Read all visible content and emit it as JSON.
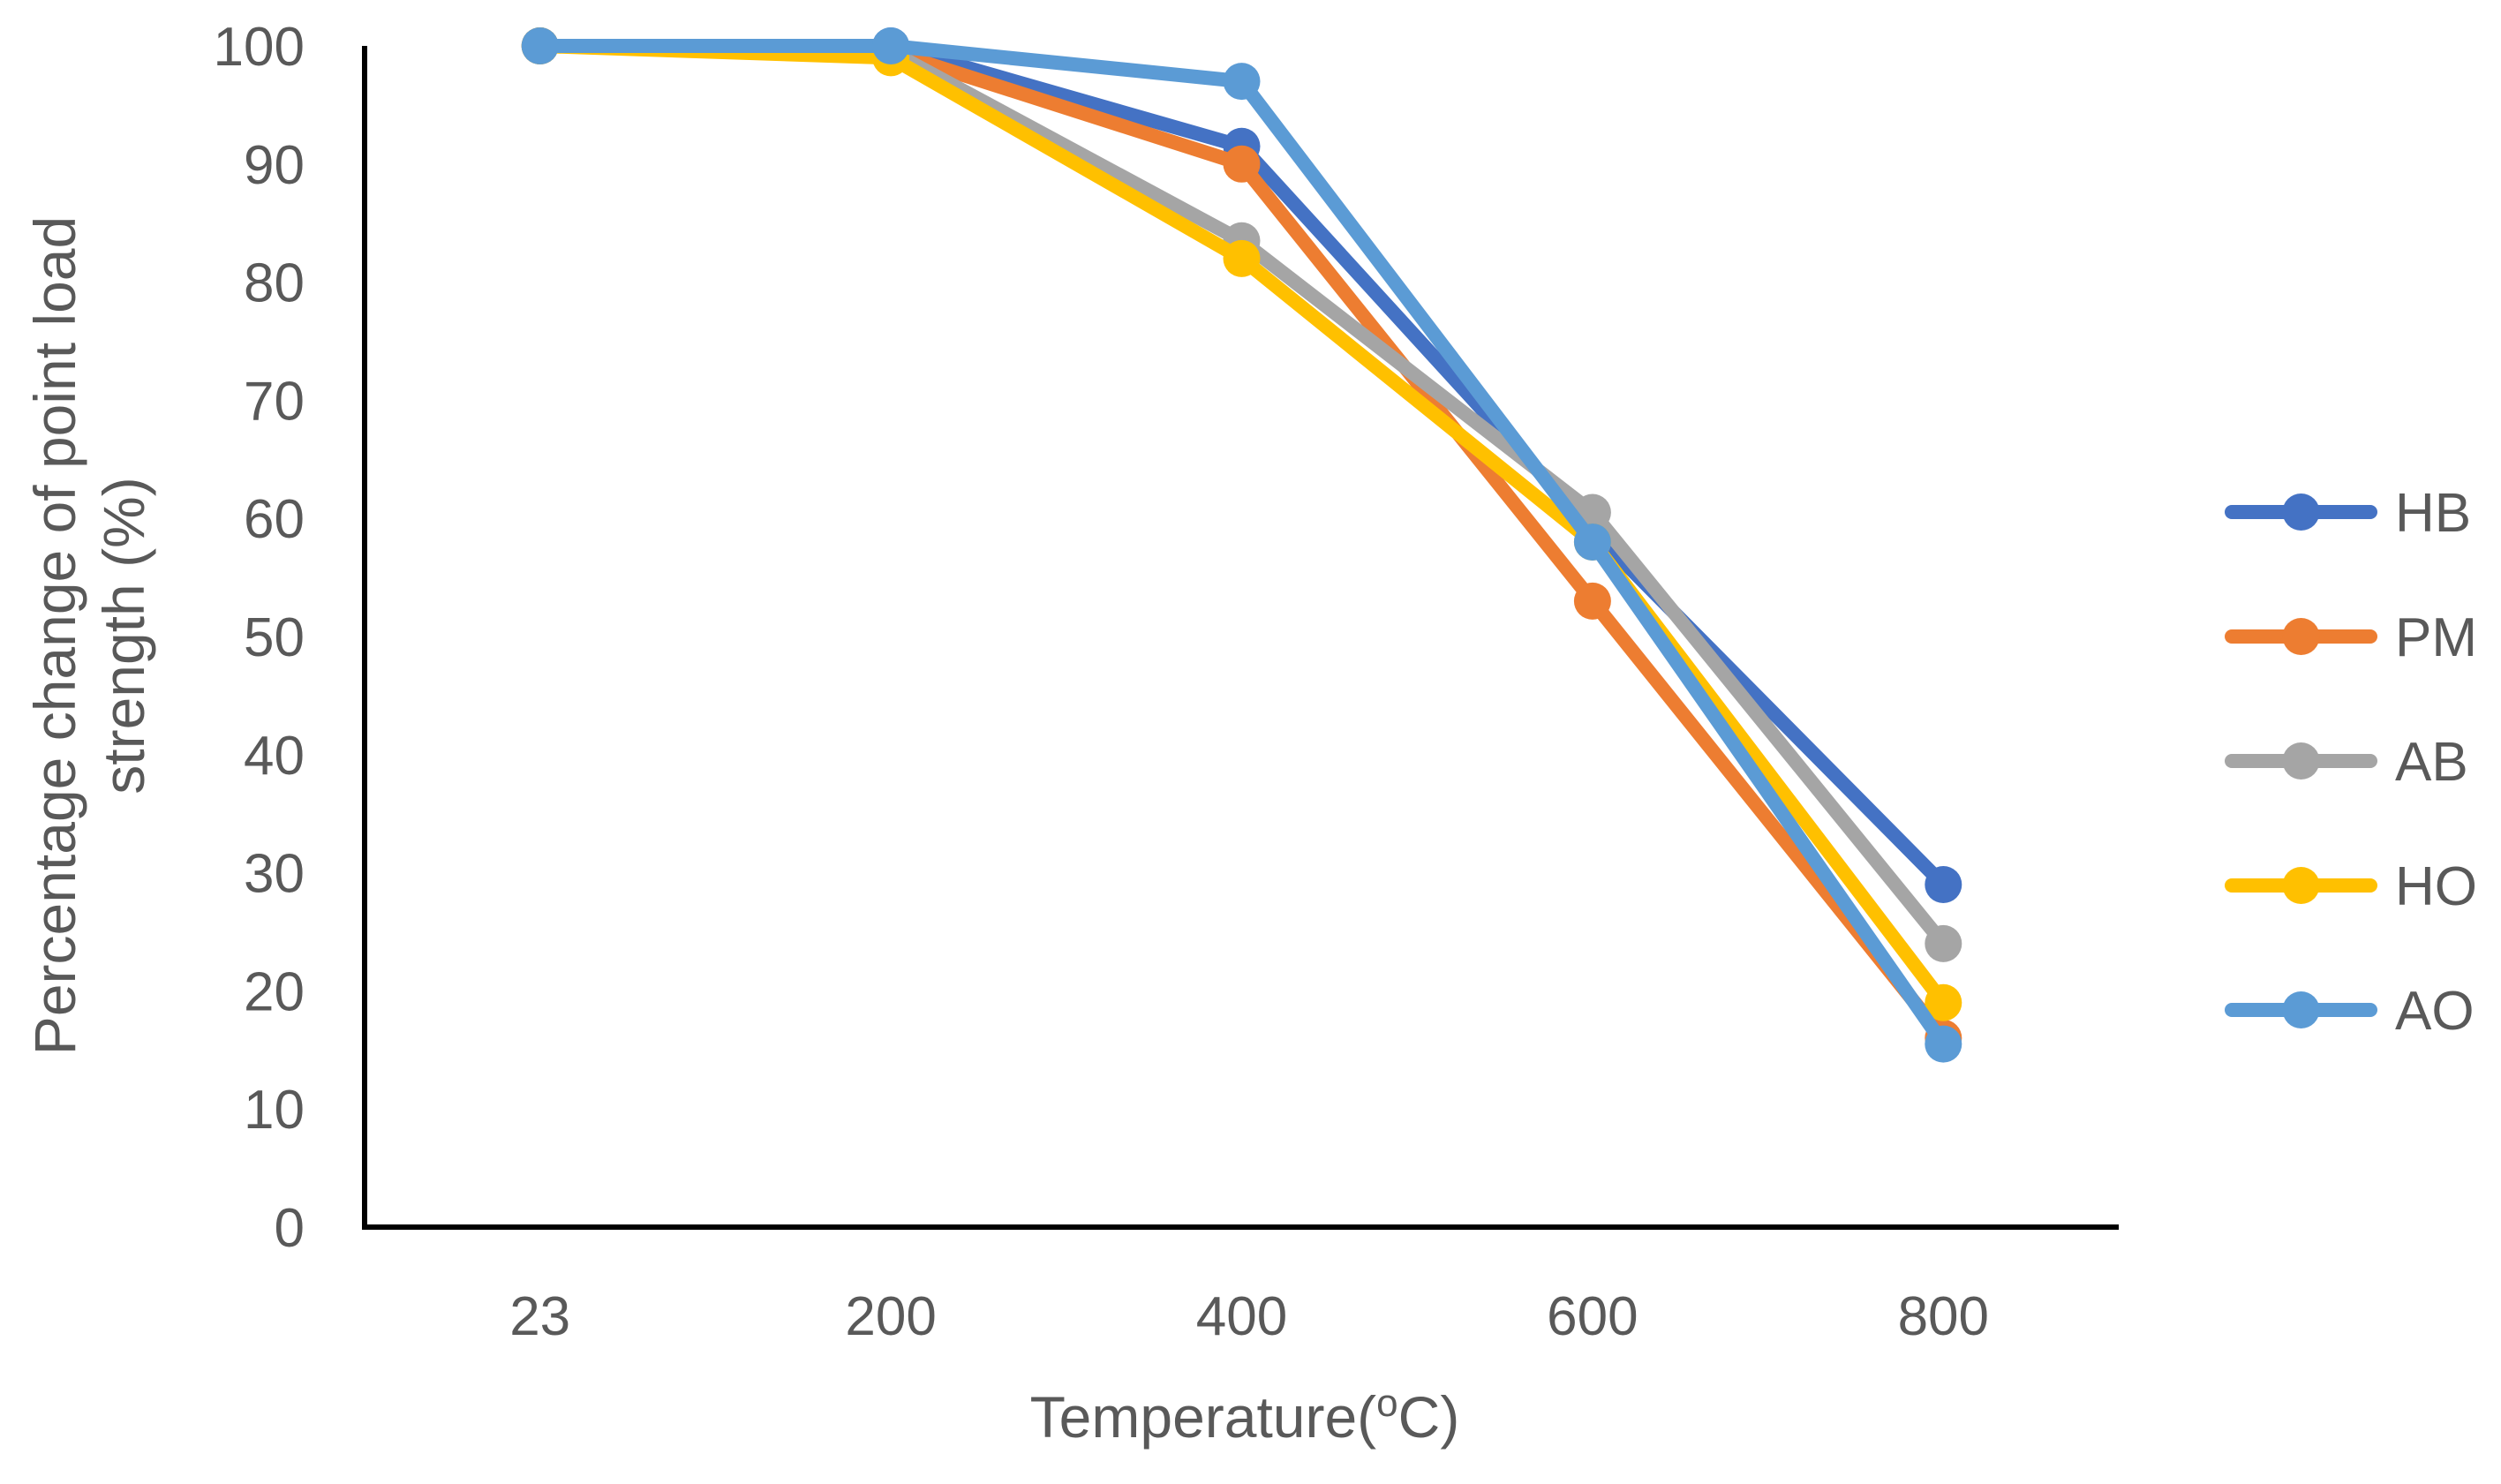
{
  "chart_data": {
    "type": "line",
    "title": "",
    "xlabel": "Temperature(",
    "xlabel_sup": "o",
    "xlabel_unit": "C)",
    "ylabel_lines": [
      "Percentage change of point load",
      "strength (%)"
    ],
    "categories": [
      "23",
      "200",
      "400",
      "600",
      "800"
    ],
    "ylim": [
      0,
      100
    ],
    "yticks": [
      0,
      10,
      20,
      30,
      40,
      50,
      60,
      70,
      80,
      90,
      100
    ],
    "grid": false,
    "legend_position": "right",
    "series": [
      {
        "name": "HB",
        "color": "#4472C4",
        "values": [
          100,
          100,
          91.5,
          59,
          29
        ]
      },
      {
        "name": "PM",
        "color": "#ED7D31",
        "values": [
          100,
          99.5,
          90,
          53,
          16
        ]
      },
      {
        "name": "AB",
        "color": "#A5A5A5",
        "values": [
          100,
          99.5,
          83.5,
          60.5,
          24
        ]
      },
      {
        "name": "HO",
        "color": "#FFC000",
        "values": [
          100,
          99,
          82,
          58,
          19
        ]
      },
      {
        "name": "AO",
        "color": "#5B9BD5",
        "values": [
          100,
          100,
          97,
          58,
          15.5
        ]
      }
    ]
  }
}
